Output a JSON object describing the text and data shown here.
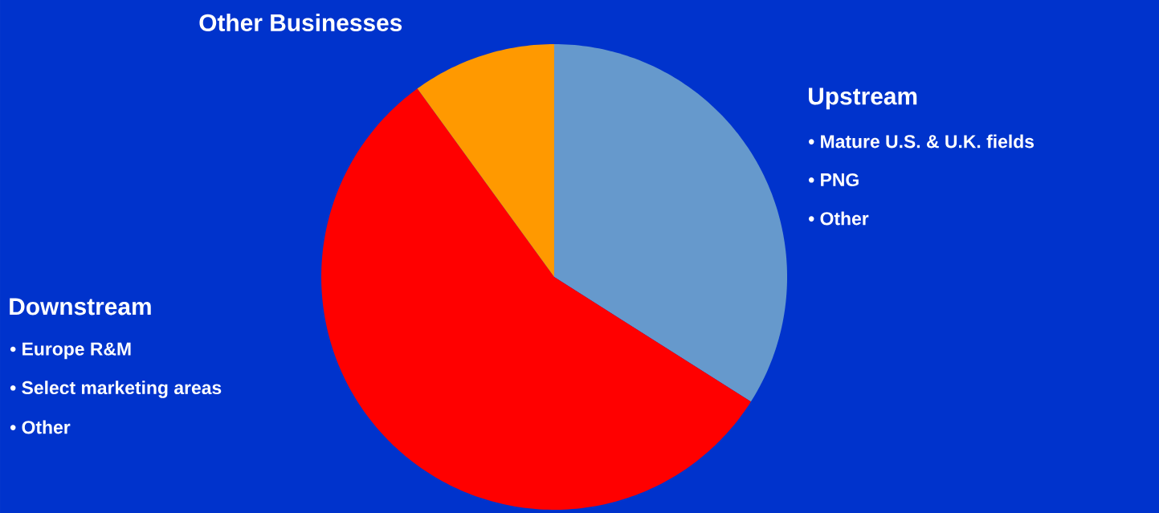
{
  "chart_data": {
    "type": "pie",
    "categories": [
      "Upstream",
      "Downstream",
      "Other Businesses"
    ],
    "values": [
      34,
      56,
      10
    ],
    "colors": [
      "#6699cc",
      "#ff0000",
      "#ff9900"
    ],
    "annotations": [
      "• Mature U.S.  & U.K. fields",
      "• PNG",
      "• Other",
      "• Europe R&M",
      "• Select marketing areas",
      "• Other"
    ]
  }
}
